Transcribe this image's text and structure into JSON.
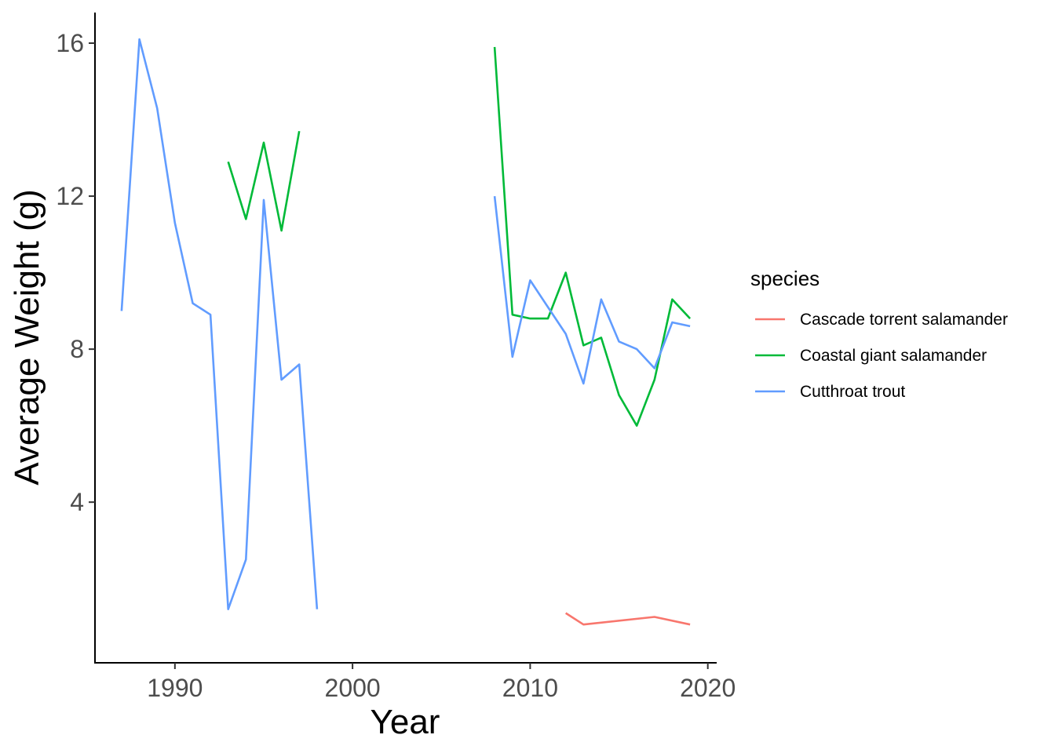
{
  "chart_data": {
    "type": "line",
    "xlabel": "Year",
    "ylabel": "Average Weight (g)",
    "xlim": [
      1985.5,
      2020.5
    ],
    "ylim": [
      -0.2,
      16.8
    ],
    "x_ticks": [
      1990,
      2000,
      2010,
      2020
    ],
    "y_ticks": [
      4,
      8,
      12,
      16
    ],
    "grid": false,
    "legend": {
      "title": "species",
      "position": "right"
    },
    "series": [
      {
        "name": "Cascade torrent salamander",
        "color": "#F8766D",
        "points": [
          [
            2012,
            1.1
          ],
          [
            2013,
            0.8
          ],
          [
            2017,
            1.0
          ],
          [
            2019,
            0.8
          ]
        ]
      },
      {
        "name": "Coastal giant salamander",
        "color": "#00BA38",
        "points": [
          [
            1993,
            12.9
          ],
          [
            1994,
            11.4
          ],
          [
            1995,
            13.4
          ],
          [
            1996,
            11.1
          ],
          [
            1997,
            13.7
          ],
          null,
          [
            2008,
            15.9
          ],
          [
            2009,
            8.9
          ],
          [
            2010,
            8.8
          ],
          [
            2011,
            8.8
          ],
          [
            2012,
            10.0
          ],
          [
            2013,
            8.1
          ],
          [
            2014,
            8.3
          ],
          [
            2015,
            6.8
          ],
          [
            2016,
            6.0
          ],
          [
            2017,
            7.2
          ],
          [
            2018,
            9.3
          ],
          [
            2019,
            8.8
          ]
        ]
      },
      {
        "name": "Cutthroat trout",
        "color": "#619CFF",
        "points": [
          [
            1987,
            9.0
          ],
          [
            1988,
            16.1
          ],
          [
            1989,
            14.3
          ],
          [
            1990,
            11.3
          ],
          [
            1991,
            9.2
          ],
          [
            1992,
            8.9
          ],
          [
            1993,
            1.2
          ],
          [
            1994,
            2.5
          ],
          [
            1995,
            11.9
          ],
          [
            1996,
            7.2
          ],
          [
            1997,
            7.6
          ],
          [
            1998,
            1.2
          ],
          null,
          [
            2008,
            12.0
          ],
          [
            2009,
            7.8
          ],
          [
            2010,
            9.8
          ],
          [
            2011,
            9.1
          ],
          [
            2012,
            8.4
          ],
          [
            2013,
            7.1
          ],
          [
            2014,
            9.3
          ],
          [
            2015,
            8.2
          ],
          [
            2016,
            8.0
          ],
          [
            2017,
            7.5
          ],
          [
            2018,
            8.7
          ],
          [
            2019,
            8.6
          ]
        ]
      }
    ]
  }
}
